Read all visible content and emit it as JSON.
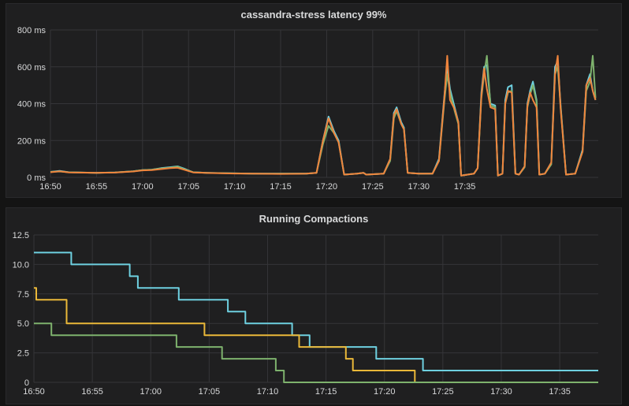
{
  "chart_data": [
    {
      "type": "line",
      "title": "cassandra-stress latency 99%",
      "xlabel": "",
      "ylabel": "",
      "x_ticks": [
        "16:50",
        "16:55",
        "17:00",
        "17:05",
        "17:10",
        "17:15",
        "17:20",
        "17:25",
        "17:30",
        "17:35"
      ],
      "x_range_minutes": [
        0,
        48.3
      ],
      "y_ticks": [
        "0 ms",
        "200 ms",
        "400 ms",
        "600 ms",
        "800 ms"
      ],
      "ylim": [
        0,
        800
      ],
      "grid": true,
      "legend": "none",
      "series": [
        {
          "color": "#6ed0e0",
          "points": [
            [
              0,
              30
            ],
            [
              1,
              35
            ],
            [
              2,
              28
            ],
            [
              3,
              27
            ],
            [
              5,
              25
            ],
            [
              7,
              27
            ],
            [
              9,
              33
            ],
            [
              10,
              40
            ],
            [
              11,
              42
            ],
            [
              12,
              50
            ],
            [
              13,
              55
            ],
            [
              13.8,
              60
            ],
            [
              14.5,
              48
            ],
            [
              15.5,
              28
            ],
            [
              17,
              25
            ],
            [
              20,
              22
            ],
            [
              22,
              20
            ],
            [
              25,
              20
            ],
            [
              27.8,
              20
            ],
            [
              28.9,
              25
            ],
            [
              29.6,
              200
            ],
            [
              30.2,
              330
            ],
            [
              30.8,
              250
            ],
            [
              31.3,
              200
            ],
            [
              31.9,
              15
            ],
            [
              33.3,
              20
            ],
            [
              34,
              25
            ],
            [
              34.3,
              15
            ],
            [
              36.2,
              20
            ],
            [
              36.9,
              100
            ],
            [
              37.3,
              350
            ],
            [
              37.6,
              380
            ],
            [
              38.1,
              300
            ],
            [
              38.4,
              270
            ],
            [
              38.8,
              25
            ],
            [
              40,
              20
            ],
            [
              41.5,
              20
            ],
            [
              42.2,
              100
            ],
            [
              42.8,
              450
            ],
            [
              43.1,
              600
            ],
            [
              43.4,
              480
            ],
            [
              43.9,
              380
            ],
            [
              44.3,
              300
            ],
            [
              44.6,
              10
            ],
            [
              46,
              20
            ],
            [
              46.4,
              50
            ],
            [
              46.8,
              460
            ],
            [
              47.1,
              600
            ],
            [
              47.4,
              610
            ],
            [
              47.8,
              400
            ],
            [
              48.3,
              390
            ],
            [
              48.6,
              10
            ],
            [
              49.1,
              20
            ],
            [
              49.4,
              420
            ],
            [
              49.7,
              490
            ],
            [
              50.1,
              500
            ],
            [
              50.5,
              20
            ],
            [
              50.9,
              15
            ],
            [
              51.5,
              60
            ],
            [
              51.8,
              400
            ],
            [
              52.1,
              470
            ],
            [
              52.4,
              520
            ],
            [
              52.8,
              420
            ],
            [
              53.1,
              15
            ],
            [
              53.7,
              20
            ],
            [
              54.4,
              80
            ],
            [
              54.8,
              600
            ],
            [
              55.1,
              630
            ],
            [
              55.4,
              400
            ],
            [
              56,
              15
            ],
            [
              57,
              20
            ],
            [
              57.8,
              150
            ],
            [
              58.2,
              500
            ],
            [
              58.6,
              560
            ],
            [
              58.9,
              470
            ],
            [
              59.2,
              420
            ]
          ]
        },
        {
          "color": "#7eb26d",
          "points": [
            [
              0,
              30
            ],
            [
              1,
              32
            ],
            [
              2,
              28
            ],
            [
              3,
              27
            ],
            [
              5,
              25
            ],
            [
              7,
              27
            ],
            [
              9,
              33
            ],
            [
              10,
              40
            ],
            [
              11,
              42
            ],
            [
              12,
              48
            ],
            [
              13,
              52
            ],
            [
              13.8,
              58
            ],
            [
              14.5,
              45
            ],
            [
              15.5,
              28
            ],
            [
              17,
              25
            ],
            [
              20,
              22
            ],
            [
              22,
              20
            ],
            [
              25,
              20
            ],
            [
              27.8,
              20
            ],
            [
              28.9,
              25
            ],
            [
              29.6,
              180
            ],
            [
              30.2,
              280
            ],
            [
              30.8,
              240
            ],
            [
              31.3,
              190
            ],
            [
              31.9,
              15
            ],
            [
              33.3,
              20
            ],
            [
              34,
              25
            ],
            [
              34.3,
              15
            ],
            [
              36.2,
              20
            ],
            [
              36.9,
              90
            ],
            [
              37.3,
              320
            ],
            [
              37.6,
              360
            ],
            [
              38.1,
              290
            ],
            [
              38.4,
              260
            ],
            [
              38.8,
              25
            ],
            [
              40,
              20
            ],
            [
              41.5,
              20
            ],
            [
              42.2,
              90
            ],
            [
              42.8,
              420
            ],
            [
              43.1,
              560
            ],
            [
              43.4,
              460
            ],
            [
              43.9,
              360
            ],
            [
              44.3,
              290
            ],
            [
              44.6,
              10
            ],
            [
              46,
              20
            ],
            [
              46.4,
              50
            ],
            [
              46.8,
              430
            ],
            [
              47.1,
              560
            ],
            [
              47.4,
              660
            ],
            [
              47.8,
              390
            ],
            [
              48.3,
              380
            ],
            [
              48.6,
              10
            ],
            [
              49.1,
              20
            ],
            [
              49.4,
              400
            ],
            [
              49.7,
              460
            ],
            [
              50.1,
              470
            ],
            [
              50.5,
              20
            ],
            [
              50.9,
              15
            ],
            [
              51.5,
              55
            ],
            [
              51.8,
              380
            ],
            [
              52.1,
              450
            ],
            [
              52.4,
              500
            ],
            [
              52.8,
              410
            ],
            [
              53.1,
              15
            ],
            [
              53.7,
              20
            ],
            [
              54.4,
              70
            ],
            [
              54.8,
              560
            ],
            [
              55.1,
              600
            ],
            [
              55.4,
              390
            ],
            [
              56,
              15
            ],
            [
              57,
              20
            ],
            [
              57.8,
              140
            ],
            [
              58.2,
              470
            ],
            [
              58.6,
              520
            ],
            [
              58.9,
              660
            ],
            [
              59.2,
              430
            ]
          ]
        },
        {
          "color": "#ef843c",
          "points": [
            [
              0,
              28
            ],
            [
              1,
              33
            ],
            [
              2,
              27
            ],
            [
              3,
              26
            ],
            [
              5,
              25
            ],
            [
              7,
              26
            ],
            [
              9,
              32
            ],
            [
              10,
              38
            ],
            [
              11,
              40
            ],
            [
              12,
              45
            ],
            [
              13,
              50
            ],
            [
              13.8,
              52
            ],
            [
              14.5,
              42
            ],
            [
              15.5,
              27
            ],
            [
              17,
              24
            ],
            [
              20,
              21
            ],
            [
              22,
              20
            ],
            [
              25,
              19
            ],
            [
              27.8,
              20
            ],
            [
              28.9,
              25
            ],
            [
              29.6,
              200
            ],
            [
              30.2,
              320
            ],
            [
              30.8,
              240
            ],
            [
              31.3,
              190
            ],
            [
              31.9,
              15
            ],
            [
              33.3,
              20
            ],
            [
              34,
              25
            ],
            [
              34.3,
              15
            ],
            [
              36.2,
              20
            ],
            [
              36.9,
              100
            ],
            [
              37.3,
              340
            ],
            [
              37.6,
              370
            ],
            [
              38.1,
              290
            ],
            [
              38.4,
              260
            ],
            [
              38.8,
              25
            ],
            [
              40,
              20
            ],
            [
              41.5,
              20
            ],
            [
              42.2,
              90
            ],
            [
              42.8,
              440
            ],
            [
              43.1,
              660
            ],
            [
              43.4,
              420
            ],
            [
              43.9,
              370
            ],
            [
              44.3,
              300
            ],
            [
              44.6,
              10
            ],
            [
              46,
              20
            ],
            [
              46.4,
              50
            ],
            [
              46.8,
              440
            ],
            [
              47.1,
              590
            ],
            [
              47.4,
              480
            ],
            [
              47.8,
              380
            ],
            [
              48.3,
              370
            ],
            [
              48.6,
              10
            ],
            [
              49.1,
              20
            ],
            [
              49.4,
              400
            ],
            [
              49.7,
              470
            ],
            [
              50.1,
              460
            ],
            [
              50.5,
              20
            ],
            [
              50.9,
              15
            ],
            [
              51.5,
              60
            ],
            [
              51.8,
              390
            ],
            [
              52.1,
              460
            ],
            [
              52.4,
              420
            ],
            [
              52.8,
              380
            ],
            [
              53.1,
              15
            ],
            [
              53.7,
              20
            ],
            [
              54.4,
              80
            ],
            [
              54.8,
              560
            ],
            [
              55.1,
              660
            ],
            [
              55.4,
              380
            ],
            [
              56,
              15
            ],
            [
              57,
              20
            ],
            [
              57.8,
              140
            ],
            [
              58.2,
              500
            ],
            [
              58.6,
              540
            ],
            [
              58.9,
              470
            ],
            [
              59.2,
              420
            ]
          ]
        }
      ]
    },
    {
      "type": "line",
      "title": "Running Compactions",
      "xlabel": "",
      "ylabel": "",
      "x_ticks": [
        "16:50",
        "16:55",
        "17:00",
        "17:05",
        "17:10",
        "17:15",
        "17:20",
        "17:25",
        "17:30",
        "17:35"
      ],
      "y_ticks": [
        "0",
        "2.5",
        "5.0",
        "7.5",
        "10.0",
        "12.5"
      ],
      "ylim": [
        0,
        12.5
      ],
      "grid": true,
      "legend": "none",
      "step": true,
      "series": [
        {
          "color": "#6ed0e0",
          "points": [
            [
              0,
              11
            ],
            [
              3.2,
              11
            ],
            [
              3.2,
              10
            ],
            [
              8.2,
              10
            ],
            [
              8.2,
              9
            ],
            [
              8.9,
              9
            ],
            [
              8.9,
              8
            ],
            [
              12.4,
              8
            ],
            [
              12.4,
              7
            ],
            [
              16.6,
              7
            ],
            [
              16.6,
              6
            ],
            [
              18.1,
              6
            ],
            [
              18.1,
              5
            ],
            [
              22.1,
              5
            ],
            [
              22.1,
              4
            ],
            [
              23.6,
              4
            ],
            [
              23.6,
              3
            ],
            [
              29.3,
              3
            ],
            [
              29.3,
              2
            ],
            [
              33.3,
              2
            ],
            [
              33.3,
              1
            ],
            [
              48.3,
              1
            ]
          ]
        },
        {
          "color": "#eab839",
          "points": [
            [
              0,
              8
            ],
            [
              0.2,
              8
            ],
            [
              0.2,
              7
            ],
            [
              2.8,
              7
            ],
            [
              2.8,
              5
            ],
            [
              14.6,
              5
            ],
            [
              14.6,
              4
            ],
            [
              22.7,
              4
            ],
            [
              22.7,
              3
            ],
            [
              26.7,
              3
            ],
            [
              26.7,
              2
            ],
            [
              27.3,
              2
            ],
            [
              27.3,
              1
            ],
            [
              32.6,
              1
            ],
            [
              32.6,
              0
            ],
            [
              48.3,
              0
            ]
          ]
        },
        {
          "color": "#7eb26d",
          "points": [
            [
              0,
              5
            ],
            [
              1.5,
              5
            ],
            [
              1.5,
              4
            ],
            [
              12.2,
              4
            ],
            [
              12.2,
              3
            ],
            [
              16.1,
              3
            ],
            [
              16.1,
              2
            ],
            [
              20.7,
              2
            ],
            [
              20.7,
              1
            ],
            [
              21.4,
              1
            ],
            [
              21.4,
              0
            ],
            [
              48.3,
              0
            ]
          ]
        }
      ]
    }
  ]
}
